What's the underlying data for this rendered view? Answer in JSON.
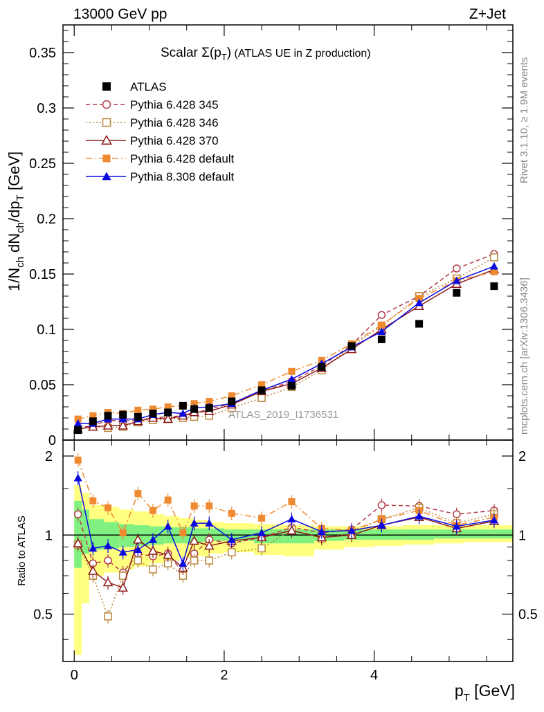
{
  "header": {
    "left": "13000 GeV pp",
    "right": "Z+Jet"
  },
  "side": {
    "rivet": "Rivet 3.1.10, ≥ 1.9M events",
    "mcplots": "mcplots.cern.ch [arXiv:1306.3436]"
  },
  "chart_data": {
    "type": "scatter",
    "title": "Scalar Σ(p_T) (ATLAS UE in Z production)",
    "title_main": "Scalar ",
    "title_sigma": "Σ(p",
    "title_sub": "T",
    "title_close": ")",
    "title_rest": " (ATLAS UE in Z production)",
    "watermark": "ATLAS_2019_I1736531",
    "xlabel": "p_T [GeV]",
    "xlabel_main": "p",
    "xlabel_sub": "T",
    "xlabel_unit": " [GeV]",
    "ylabel": "1/N_ch dN_ch/dp_T [GeV]",
    "ylabel_parts": {
      "a": "1/N",
      "b": "ch",
      "c": " dN",
      "d": "ch",
      "e": "/dp",
      "f": "T",
      "g": " [GeV]"
    },
    "ratio_ylabel": "Ratio to ATLAS",
    "xlim": [
      -0.15,
      5.85
    ],
    "ylim": [
      0,
      0.375
    ],
    "ratio_ylim": [
      0.33,
      2.3
    ],
    "x_ticks": [
      0,
      2,
      4
    ],
    "x_tick_labels": [
      "0",
      "2",
      "4"
    ],
    "y_ticks": [
      0,
      0.05,
      0.1,
      0.15,
      0.2,
      0.25,
      0.3,
      0.35
    ],
    "y_tick_labels": [
      "0",
      "0.05",
      "0.1",
      "0.15",
      "0.2",
      "0.25",
      "0.3",
      "0.35"
    ],
    "ratio_ticks": [
      0.5,
      1,
      2
    ],
    "ratio_tick_labels": [
      "0.5",
      "1",
      "2"
    ],
    "x": [
      0.05,
      0.25,
      0.45,
      0.65,
      0.85,
      1.05,
      1.25,
      1.45,
      1.6,
      1.8,
      2.1,
      2.5,
      2.9,
      3.3,
      3.7,
      4.1,
      4.6,
      5.1,
      5.6
    ],
    "bins": [
      [
        0.0,
        0.1
      ],
      [
        0.1,
        0.2
      ],
      [
        0.2,
        0.4
      ],
      [
        0.4,
        0.6
      ],
      [
        0.6,
        0.8
      ],
      [
        0.8,
        1.0
      ],
      [
        1.0,
        1.2
      ],
      [
        1.2,
        1.4
      ],
      [
        1.4,
        1.6
      ],
      [
        1.6,
        1.8
      ],
      [
        1.8,
        2.0
      ],
      [
        2.0,
        2.4
      ],
      [
        2.4,
        2.8
      ],
      [
        2.8,
        3.2
      ],
      [
        3.2,
        3.6
      ],
      [
        3.6,
        4.0
      ],
      [
        4.0,
        4.4
      ],
      [
        4.4,
        4.8
      ],
      [
        4.8,
        5.2
      ],
      [
        5.2,
        5.6
      ],
      [
        5.6,
        5.85
      ]
    ],
    "band_yellow": [
      [
        0.35,
        1.55
      ],
      [
        0.55,
        1.45
      ],
      [
        0.7,
        1.3
      ],
      [
        0.72,
        1.28
      ],
      [
        0.74,
        1.25
      ],
      [
        0.76,
        1.23
      ],
      [
        0.78,
        1.2
      ],
      [
        0.8,
        1.18
      ],
      [
        0.82,
        1.16
      ],
      [
        0.83,
        1.14
      ],
      [
        0.85,
        1.12
      ],
      [
        0.86,
        1.11
      ],
      [
        0.84,
        1.1
      ],
      [
        0.83,
        1.09
      ],
      [
        0.88,
        1.08
      ],
      [
        0.9,
        1.08
      ],
      [
        0.91,
        1.08
      ],
      [
        0.92,
        1.09
      ],
      [
        0.93,
        1.09
      ],
      [
        0.94,
        1.09
      ],
      [
        0.94,
        1.09
      ]
    ],
    "band_green": [
      [
        0.75,
        1.35
      ],
      [
        0.85,
        1.25
      ],
      [
        0.88,
        1.15
      ],
      [
        0.89,
        1.12
      ],
      [
        0.9,
        1.1
      ],
      [
        0.91,
        1.09
      ],
      [
        0.92,
        1.08
      ],
      [
        0.93,
        1.07
      ],
      [
        0.93,
        1.07
      ],
      [
        0.94,
        1.06
      ],
      [
        0.95,
        1.06
      ],
      [
        0.95,
        1.05
      ],
      [
        0.93,
        1.05
      ],
      [
        0.93,
        1.05
      ],
      [
        0.95,
        1.05
      ],
      [
        0.96,
        1.05
      ],
      [
        0.96,
        1.05
      ],
      [
        0.96,
        1.05
      ],
      [
        0.97,
        1.05
      ],
      [
        0.97,
        1.05
      ],
      [
        0.97,
        1.05
      ]
    ],
    "series": [
      {
        "name": "ATLAS",
        "color": "#000000",
        "marker": "square-filled",
        "line": "none",
        "values": [
          0.009,
          0.017,
          0.022,
          0.023,
          0.021,
          0.024,
          0.025,
          0.031,
          0.028,
          0.029,
          0.035,
          0.045,
          0.049,
          0.066,
          0.085,
          0.091,
          0.105,
          0.133,
          0.139
        ]
      },
      {
        "name": "Pythia 6.428 345",
        "color": "#b03a48",
        "marker": "circle-open",
        "line": "dashed",
        "values": [
          0.011,
          0.013,
          0.018,
          0.017,
          0.018,
          0.02,
          0.021,
          0.022,
          0.024,
          0.028,
          0.033,
          0.044,
          0.053,
          0.067,
          0.086,
          0.113,
          0.13,
          0.155,
          0.168
        ],
        "ratio": [
          1.2,
          0.78,
          0.8,
          0.72,
          0.85,
          0.83,
          0.85,
          0.72,
          0.85,
          0.96,
          0.93,
          0.98,
          1.07,
          1.02,
          1.05,
          1.3,
          1.29,
          1.2,
          1.24
        ]
      },
      {
        "name": "Pythia 6.428 346",
        "color": "#b8863b",
        "marker": "square-open",
        "line": "dotted",
        "values": [
          0.01,
          0.012,
          0.011,
          0.012,
          0.016,
          0.018,
          0.019,
          0.02,
          0.021,
          0.022,
          0.029,
          0.038,
          0.048,
          0.063,
          0.085,
          0.103,
          0.13,
          0.146,
          0.165
        ],
        "ratio": [
          0.92,
          0.7,
          0.49,
          0.7,
          0.8,
          0.74,
          0.78,
          0.7,
          0.8,
          0.8,
          0.86,
          0.89,
          1.05,
          0.97,
          1.02,
          1.15,
          1.27,
          1.11,
          1.2
        ]
      },
      {
        "name": "Pythia 6.428 370",
        "color": "#8b1a1a",
        "marker": "triangle-open",
        "line": "solid",
        "values": [
          0.01,
          0.012,
          0.013,
          0.013,
          0.017,
          0.02,
          0.019,
          0.022,
          0.025,
          0.026,
          0.032,
          0.044,
          0.051,
          0.065,
          0.082,
          0.1,
          0.121,
          0.141,
          0.154
        ],
        "ratio": [
          0.93,
          0.73,
          0.66,
          0.63,
          0.96,
          0.87,
          0.84,
          0.75,
          0.95,
          0.91,
          0.95,
          0.98,
          1.04,
          0.98,
          1.0,
          1.09,
          1.17,
          1.06,
          1.13
        ]
      },
      {
        "name": "Pythia 6.428 default",
        "color": "#f08a30",
        "marker": "square-filled",
        "line": "dashdot",
        "values": [
          0.019,
          0.022,
          0.025,
          0.024,
          0.027,
          0.028,
          0.03,
          0.031,
          0.033,
          0.035,
          0.04,
          0.05,
          0.062,
          0.072,
          0.087,
          0.104,
          0.128,
          0.144,
          0.152
        ],
        "ratio": [
          1.93,
          1.35,
          1.27,
          1.02,
          1.44,
          1.24,
          1.36,
          1.02,
          1.29,
          1.29,
          1.21,
          1.16,
          1.34,
          1.06,
          1.04,
          1.15,
          1.24,
          1.09,
          1.17
        ]
      },
      {
        "name": "Pythia 8.308 default",
        "color": "#0a0ae0",
        "marker": "triangle-filled",
        "line": "solid",
        "values": [
          0.015,
          0.015,
          0.019,
          0.019,
          0.019,
          0.023,
          0.025,
          0.024,
          0.029,
          0.03,
          0.033,
          0.045,
          0.055,
          0.069,
          0.084,
          0.098,
          0.124,
          0.144,
          0.157
        ],
        "ratio": [
          1.65,
          0.89,
          0.91,
          0.86,
          0.88,
          0.96,
          1.08,
          0.78,
          1.11,
          1.11,
          0.96,
          1.02,
          1.15,
          1.03,
          1.04,
          1.09,
          1.18,
          1.08,
          1.14
        ]
      }
    ]
  }
}
